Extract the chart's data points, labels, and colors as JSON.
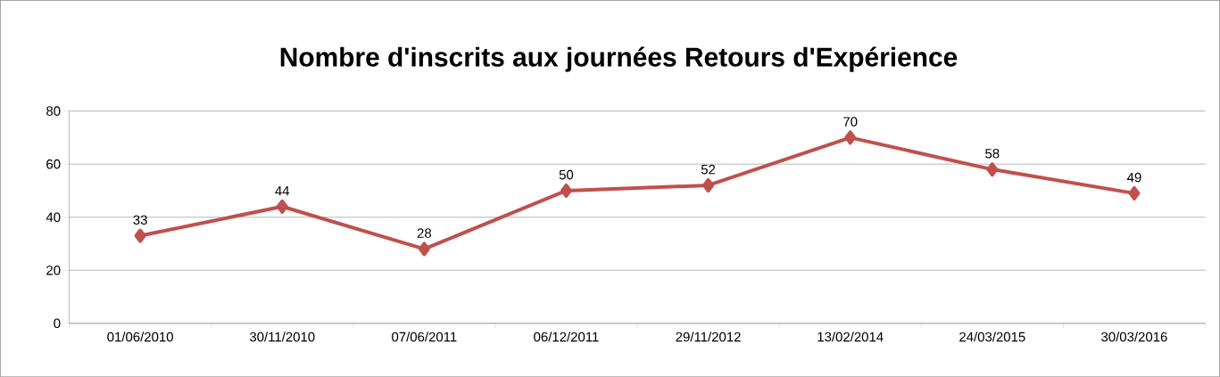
{
  "chart_data": {
    "type": "line",
    "title": "Nombre d'inscrits aux journées Retours d'Expérience",
    "categories": [
      "01/06/2010",
      "30/11/2010",
      "07/06/2011",
      "06/12/2011",
      "29/11/2012",
      "13/02/2014",
      "24/03/2015",
      "30/03/2016"
    ],
    "values": [
      33,
      44,
      28,
      50,
      52,
      70,
      58,
      49
    ],
    "color": "#c0504d",
    "marker": "diamond",
    "line_style": "solid",
    "ylim": [
      0,
      80
    ],
    "yticks": [
      0,
      20,
      40,
      60,
      80
    ],
    "grid": "y",
    "data_labels": true
  }
}
